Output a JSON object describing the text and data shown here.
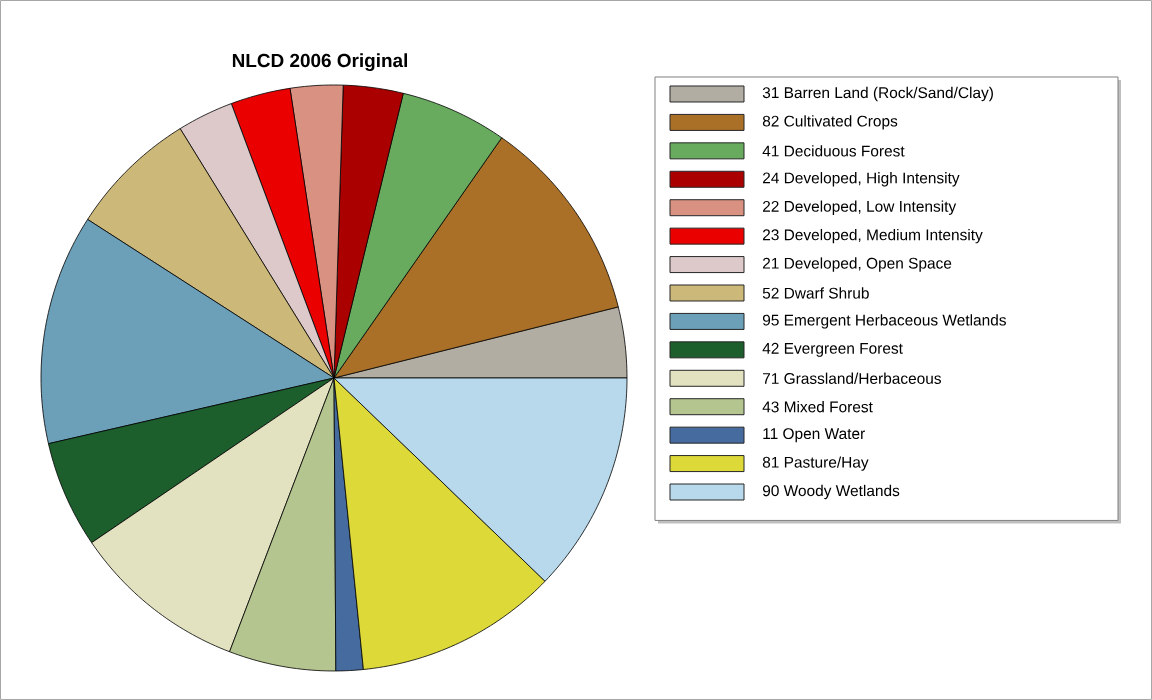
{
  "chart_data": {
    "type": "pie",
    "title": "NLCD 2006 Original",
    "categories": [
      "31 Barren Land (Rock/Sand/Clay)",
      "82 Cultivated Crops",
      "41 Deciduous Forest",
      "24 Developed, High Intensity",
      "22 Developed, Low Intensity",
      "23 Developed, Medium Intensity",
      "21 Developed, Open Space",
      "52 Dwarf Shrub",
      "95 Emergent Herbaceous Wetlands",
      "42 Evergreen Forest",
      "71 Grassland/Herbaceous",
      "43 Mixed Forest",
      "11 Open Water",
      "81 Pasture/Hay",
      "90 Woody Wetlands"
    ],
    "values": [
      3.9,
      11.4,
      5.9,
      3.3,
      2.9,
      3.3,
      3.1,
      7.1,
      12.7,
      5.9,
      9.7,
      5.9,
      1.5,
      11.2,
      12.2
    ],
    "colors": [
      "#b2ada3",
      "#aa7028",
      "#68ab5f",
      "#ab0000",
      "#d99282",
      "#eb0000",
      "#ddc9c9",
      "#ccb879",
      "#6c9fb8",
      "#1c5f2c",
      "#e2e2c1",
      "#b5c58f",
      "#466b9f",
      "#dcd939",
      "#b8d9eb"
    ],
    "legend": "right"
  }
}
